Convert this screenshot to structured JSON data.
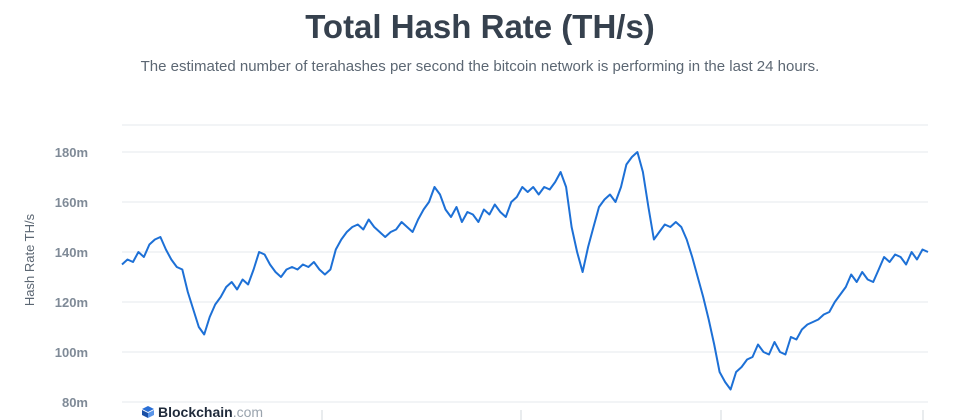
{
  "page": {
    "title": "Total Hash Rate (TH/s)",
    "subtitle": "The estimated number of terahashes per second the bitcoin network is performing in the last 24 hours.",
    "logo": {
      "name": "Blockchain",
      "suffix": ".com"
    }
  },
  "colors": {
    "line": "#1d70d6",
    "grid": "#e6e9ee",
    "text": "#36414e"
  },
  "chart_data": {
    "type": "line",
    "ylabel": "Hash Rate TH/s",
    "xlabel": "",
    "ylim": [
      80,
      180
    ],
    "yticks": [
      {
        "value": 80,
        "label": "80m"
      },
      {
        "value": 100,
        "label": "100m"
      },
      {
        "value": 120,
        "label": "120m"
      },
      {
        "value": 140,
        "label": "140m"
      },
      {
        "value": 160,
        "label": "160m"
      },
      {
        "value": 180,
        "label": "180m"
      }
    ],
    "grid": true,
    "series": [
      {
        "values": [
          135,
          137,
          136,
          140,
          138,
          143,
          145,
          146,
          141,
          137,
          134,
          133,
          124,
          117,
          110,
          107,
          114,
          119,
          122,
          126,
          128,
          125,
          129,
          127,
          133,
          140,
          139,
          135,
          132,
          130,
          133,
          134,
          133,
          135,
          134,
          136,
          133,
          131,
          133,
          141,
          145,
          148,
          150,
          151,
          149,
          153,
          150,
          148,
          146,
          148,
          149,
          152,
          150,
          148,
          153,
          157,
          160,
          166,
          163,
          157,
          154,
          158,
          152,
          156,
          155,
          152,
          157,
          155,
          159,
          156,
          154,
          160,
          162,
          166,
          164,
          166,
          163,
          166,
          165,
          168,
          172,
          166,
          150,
          140,
          132,
          142,
          150,
          158,
          161,
          163,
          160,
          166,
          175,
          178,
          180,
          172,
          158,
          145,
          148,
          151,
          150,
          152,
          150,
          145,
          138,
          130,
          122,
          113,
          103,
          92,
          88,
          85,
          92,
          94,
          97,
          98,
          103,
          100,
          99,
          104,
          100,
          99,
          106,
          105,
          109,
          111,
          112,
          113,
          115,
          116,
          120,
          123,
          126,
          131,
          128,
          132,
          129,
          128,
          133,
          138,
          136,
          139,
          138,
          135,
          140,
          137,
          141,
          140
        ]
      }
    ]
  }
}
